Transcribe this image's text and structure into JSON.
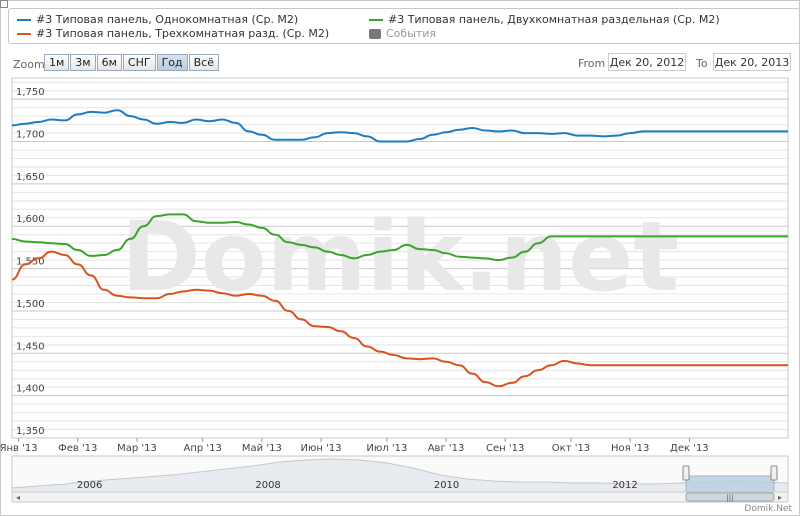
{
  "legend": {
    "items": [
      {
        "label": "#3 Типовая панель, Однокомнатная (Ср. М2)",
        "color": "#1f7bc2"
      },
      {
        "label": "#3 Типовая панель, Двухкомнатная раздельная (Ср. М2)",
        "color": "#3aa52a"
      },
      {
        "label": "#3 Типовая панель, Трехкомнатная разд. (Ср. М2)",
        "color": "#d9531e"
      },
      {
        "label": "События",
        "color": "#777777"
      }
    ]
  },
  "zoom": {
    "label": "Zoom",
    "buttons": [
      "1м",
      "3м",
      "6м",
      "СНГ",
      "Год",
      "Всё"
    ],
    "active": "Год"
  },
  "range": {
    "from_label": "From",
    "from_value": "Дек 20, 2012",
    "to_label": "To",
    "to_value": "Дек 20, 2013"
  },
  "watermark": "Domik.net",
  "footer": "Domik.Net",
  "chart_data": {
    "type": "line",
    "ylim": [
      1350,
      1775
    ],
    "yticks": [
      "1,350",
      "1,400",
      "1,450",
      "1,500",
      "1,550",
      "1,600",
      "1,650",
      "1,700",
      "1,750"
    ],
    "ytick_values": [
      1350,
      1400,
      1450,
      1500,
      1550,
      1600,
      1650,
      1700,
      1750
    ],
    "xlabels": [
      "Янв '13",
      "Фев '13",
      "Мар '13",
      "Апр '13",
      "Май '13",
      "Июн '13",
      "Июл '13",
      "Авг '13",
      "Сен '13",
      "Окт '13",
      "Ноя '13",
      "Дек '13"
    ],
    "x_index_range": [
      0,
      59
    ],
    "xlabel_positions": [
      0.5,
      5,
      9.5,
      14.5,
      19,
      23.5,
      28.5,
      33,
      37.5,
      42.5,
      47,
      51.5
    ],
    "grid": true,
    "series": [
      {
        "name": "#3 Типовая панель, Однокомнатная (Ср. М2)",
        "color": "#1f7bc2",
        "values": [
          1719,
          1721,
          1723,
          1726,
          1725,
          1732,
          1735,
          1734,
          1737,
          1730,
          1726,
          1721,
          1723,
          1722,
          1726,
          1724,
          1726,
          1722,
          1712,
          1708,
          1702,
          1702,
          1702,
          1705,
          1710,
          1711,
          1710,
          1706,
          1700,
          1700,
          1700,
          1703,
          1708,
          1711,
          1714,
          1716,
          1713,
          1712,
          1713,
          1710,
          1710,
          1709,
          1710,
          1707,
          1707,
          1706,
          1707,
          1710,
          1712,
          1712,
          1712,
          1712,
          1712,
          1712,
          1712,
          1712,
          1712,
          1712,
          1712,
          1712
        ]
      },
      {
        "name": "#3 Типовая панель, Двухкомнатная раздельная (Ср. М2)",
        "color": "#3aa52a",
        "values": [
          1585,
          1582,
          1581,
          1580,
          1579,
          1572,
          1565,
          1566,
          1572,
          1585,
          1600,
          1612,
          1614,
          1614,
          1606,
          1604,
          1604,
          1605,
          1602,
          1598,
          1590,
          1581,
          1578,
          1575,
          1570,
          1566,
          1562,
          1566,
          1570,
          1572,
          1578,
          1573,
          1572,
          1568,
          1564,
          1563,
          1562,
          1560,
          1563,
          1570,
          1580,
          1588,
          1588,
          1588,
          1588,
          1588,
          1588,
          1588,
          1588,
          1588,
          1588,
          1588,
          1588,
          1588,
          1588,
          1588,
          1588,
          1588,
          1588,
          1588
        ]
      },
      {
        "name": "#3 Типовая панель, Трехкомнатная разд. (Ср. М2)",
        "color": "#d9531e",
        "values": [
          1537,
          1555,
          1562,
          1570,
          1566,
          1555,
          1542,
          1525,
          1518,
          1516,
          1515,
          1515,
          1520,
          1523,
          1525,
          1524,
          1521,
          1518,
          1520,
          1518,
          1512,
          1500,
          1490,
          1482,
          1481,
          1476,
          1468,
          1458,
          1452,
          1448,
          1444,
          1443,
          1444,
          1440,
          1436,
          1426,
          1416,
          1411,
          1415,
          1423,
          1430,
          1436,
          1441,
          1438,
          1436,
          1436,
          1436,
          1436,
          1436,
          1436,
          1436,
          1436,
          1436,
          1436,
          1436,
          1436,
          1436,
          1436,
          1436,
          1436
        ]
      }
    ]
  },
  "navigator": {
    "labels": [
      "2006",
      "2008",
      "2010",
      "2012"
    ],
    "label_positions": [
      0.1,
      0.33,
      0.56,
      0.79
    ]
  }
}
